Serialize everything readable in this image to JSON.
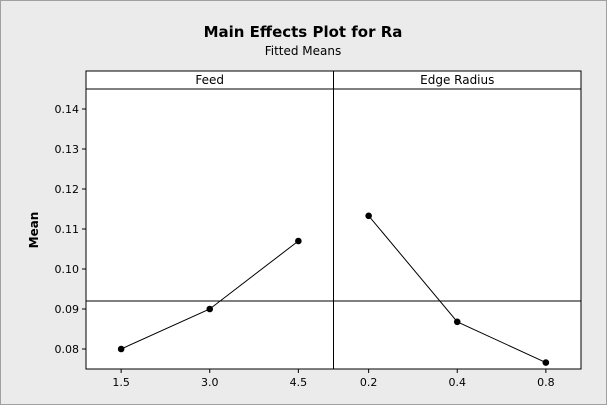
{
  "chart_data": {
    "type": "line",
    "title": "Main Effects Plot for Ra",
    "subtitle": "Fitted Means",
    "ylabel": "Mean",
    "ylim": [
      0.075,
      0.145
    ],
    "yticks": [
      "0.08",
      "0.09",
      "0.10",
      "0.11",
      "0.12",
      "0.13",
      "0.14"
    ],
    "reference_line": 0.092,
    "colors": {
      "background": "#ebebeb",
      "plot_area": "#ffffff",
      "line": "#000000"
    },
    "panels": [
      {
        "name": "Feed",
        "categories": [
          "1.5",
          "3.0",
          "4.5"
        ],
        "values": [
          0.08,
          0.09,
          0.107
        ]
      },
      {
        "name": "Edge Radius",
        "categories": [
          "0.2",
          "0.4",
          "0.8"
        ],
        "values": [
          0.1133,
          0.0868,
          0.0766
        ]
      }
    ]
  }
}
